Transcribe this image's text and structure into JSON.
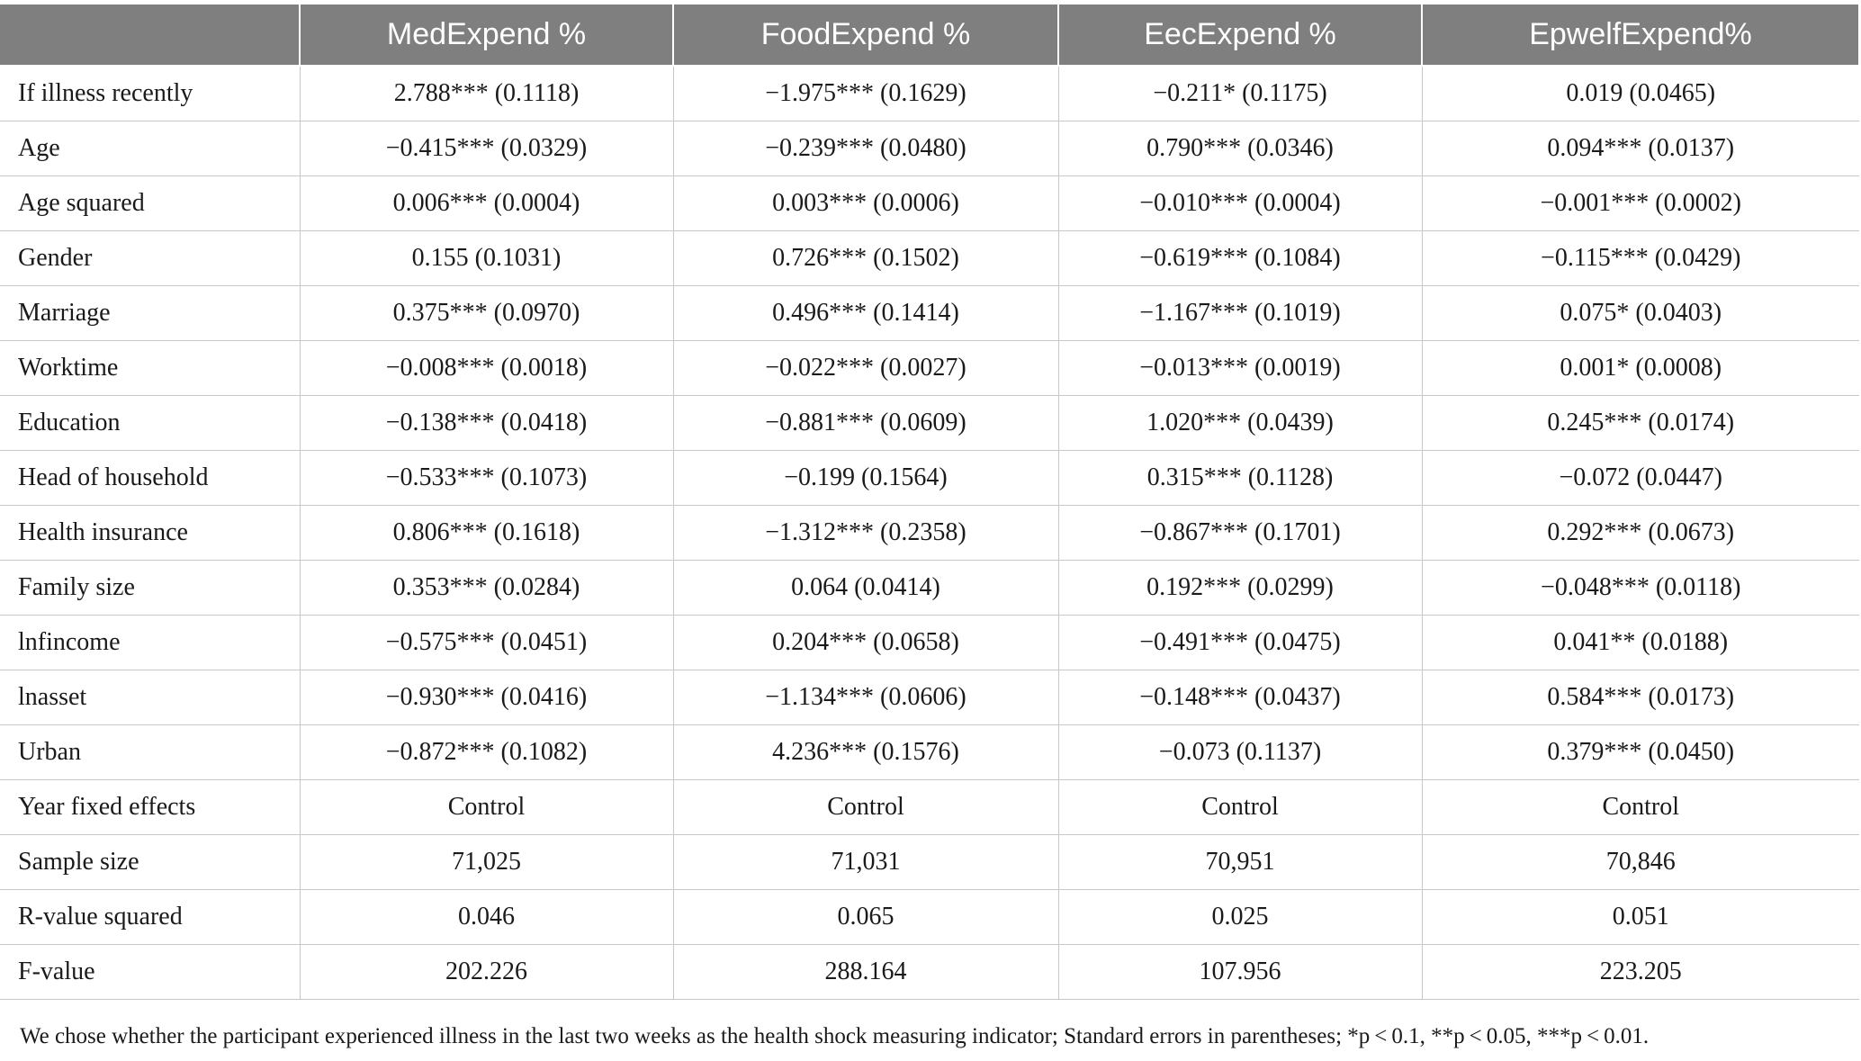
{
  "table": {
    "columns": [
      "",
      "MedExpend %",
      "FoodExpend %",
      "EecExpend %",
      "EpwelfExpend%"
    ],
    "rows": [
      {
        "label": "If illness recently",
        "cells": [
          "2.788*** (0.1118)",
          "−1.975*** (0.1629)",
          "−0.211* (0.1175)",
          "0.019 (0.0465)"
        ]
      },
      {
        "label": "Age",
        "cells": [
          "−0.415*** (0.0329)",
          "−0.239*** (0.0480)",
          "0.790*** (0.0346)",
          "0.094*** (0.0137)"
        ]
      },
      {
        "label": "Age squared",
        "cells": [
          "0.006*** (0.0004)",
          "0.003*** (0.0006)",
          "−0.010*** (0.0004)",
          "−0.001*** (0.0002)"
        ]
      },
      {
        "label": "Gender",
        "cells": [
          "0.155 (0.1031)",
          "0.726*** (0.1502)",
          "−0.619*** (0.1084)",
          "−0.115*** (0.0429)"
        ]
      },
      {
        "label": "Marriage",
        "cells": [
          "0.375*** (0.0970)",
          "0.496*** (0.1414)",
          "−1.167*** (0.1019)",
          "0.075* (0.0403)"
        ]
      },
      {
        "label": "Worktime",
        "cells": [
          "−0.008*** (0.0018)",
          "−0.022*** (0.0027)",
          "−0.013*** (0.0019)",
          "0.001* (0.0008)"
        ]
      },
      {
        "label": "Education",
        "cells": [
          "−0.138*** (0.0418)",
          "−0.881*** (0.0609)",
          "1.020*** (0.0439)",
          "0.245*** (0.0174)"
        ]
      },
      {
        "label": "Head of household",
        "cells": [
          "−0.533*** (0.1073)",
          "−0.199 (0.1564)",
          "0.315*** (0.1128)",
          "−0.072 (0.0447)"
        ]
      },
      {
        "label": "Health insurance",
        "cells": [
          "0.806*** (0.1618)",
          "−1.312*** (0.2358)",
          "−0.867*** (0.1701)",
          "0.292*** (0.0673)"
        ]
      },
      {
        "label": "Family size",
        "cells": [
          "0.353*** (0.0284)",
          "0.064 (0.0414)",
          "0.192*** (0.0299)",
          "−0.048*** (0.0118)"
        ]
      },
      {
        "label": "lnfincome",
        "cells": [
          "−0.575*** (0.0451)",
          "0.204*** (0.0658)",
          "−0.491*** (0.0475)",
          "0.041** (0.0188)"
        ]
      },
      {
        "label": "lnasset",
        "cells": [
          "−0.930*** (0.0416)",
          "−1.134*** (0.0606)",
          "−0.148*** (0.0437)",
          "0.584*** (0.0173)"
        ]
      },
      {
        "label": "Urban",
        "cells": [
          "−0.872*** (0.1082)",
          "4.236*** (0.1576)",
          "−0.073 (0.1137)",
          "0.379*** (0.0450)"
        ]
      },
      {
        "label": "Year fixed effects",
        "cells": [
          "Control",
          "Control",
          "Control",
          "Control"
        ]
      },
      {
        "label": "Sample size",
        "cells": [
          "71,025",
          "71,031",
          "70,951",
          "70,846"
        ]
      },
      {
        "label": "R-value squared",
        "cells": [
          "0.046",
          "0.065",
          "0.025",
          "0.051"
        ]
      },
      {
        "label": "F-value",
        "cells": [
          "202.226",
          "288.164",
          "107.956",
          "223.205"
        ]
      }
    ],
    "footnote": "We chose whether the participant experienced illness in the last two weeks as the health shock measuring indicator; Standard errors in parentheses; *p < 0.1, **p < 0.05, ***p < 0.01."
  },
  "colors": {
    "header_bg": "#7f7f7f",
    "header_text": "#ffffff",
    "grid_line": "#c8c8c8",
    "body_text": "#1a1a1a"
  }
}
